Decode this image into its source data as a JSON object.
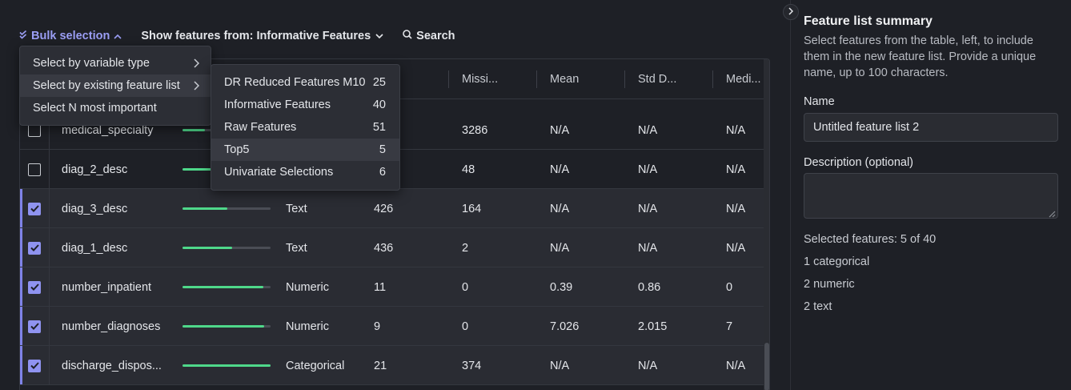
{
  "toolbar": {
    "bulk_label": "Bulk selection",
    "show_label": "Show features from: Informative Features",
    "search_label": "Search"
  },
  "table": {
    "columns": [
      "Missi...",
      "Mean",
      "Std D...",
      "Medi..."
    ],
    "rows": [
      {
        "name": "medical_specialty",
        "checked": false,
        "importance": 0.25,
        "type": "",
        "unique": "",
        "missing": "3286",
        "mean": "N/A",
        "std": "N/A",
        "median": "N/A"
      },
      {
        "name": "diag_2_desc",
        "checked": false,
        "importance": 0.4,
        "type": "",
        "unique": "",
        "missing": "48",
        "mean": "N/A",
        "std": "N/A",
        "median": "N/A"
      },
      {
        "name": "diag_3_desc",
        "checked": true,
        "importance": 0.51,
        "type": "Text",
        "unique": "426",
        "missing": "164",
        "mean": "N/A",
        "std": "N/A",
        "median": "N/A"
      },
      {
        "name": "diag_1_desc",
        "checked": true,
        "importance": 0.56,
        "type": "Text",
        "unique": "436",
        "missing": "2",
        "mean": "N/A",
        "std": "N/A",
        "median": "N/A"
      },
      {
        "name": "number_inpatient",
        "checked": true,
        "importance": 0.92,
        "type": "Numeric",
        "unique": "11",
        "missing": "0",
        "mean": "0.39",
        "std": "0.86",
        "median": "0"
      },
      {
        "name": "number_diagnoses",
        "checked": true,
        "importance": 0.93,
        "type": "Numeric",
        "unique": "9",
        "missing": "0",
        "mean": "7.026",
        "std": "2.015",
        "median": "7"
      },
      {
        "name": "discharge_dispos...",
        "checked": true,
        "importance": 1.0,
        "type": "Categorical",
        "unique": "21",
        "missing": "374",
        "mean": "N/A",
        "std": "N/A",
        "median": "N/A"
      }
    ]
  },
  "bulk_menu": {
    "items": [
      {
        "label": "Select by variable type",
        "submenu": true,
        "highlighted": false
      },
      {
        "label": "Select by existing feature list",
        "submenu": true,
        "highlighted": true
      },
      {
        "label": "Select N most important",
        "submenu": false,
        "highlighted": false
      }
    ]
  },
  "feature_list_menu": {
    "items": [
      {
        "label": "DR Reduced Features M10",
        "count": "25",
        "highlighted": false
      },
      {
        "label": "Informative Features",
        "count": "40",
        "highlighted": false
      },
      {
        "label": "Raw Features",
        "count": "51",
        "highlighted": false
      },
      {
        "label": "Top5",
        "count": "5",
        "highlighted": true
      },
      {
        "label": "Univariate Selections",
        "count": "6",
        "highlighted": false
      }
    ]
  },
  "panel": {
    "title": "Feature list summary",
    "description": "Select features from the table, left, to include them in the new feature list. Provide a unique name, up to 100 characters.",
    "name_label": "Name",
    "name_value": "Untitled feature list 2",
    "desc_label": "Description (optional)",
    "desc_value": "",
    "selected": "Selected features: 5 of 40",
    "breakdown": [
      "1 categorical",
      "2 numeric",
      "2 text"
    ]
  },
  "colors": {
    "accent": "#8f93f0",
    "importance_bar": "#4ed88a",
    "background": "#1e2026"
  }
}
